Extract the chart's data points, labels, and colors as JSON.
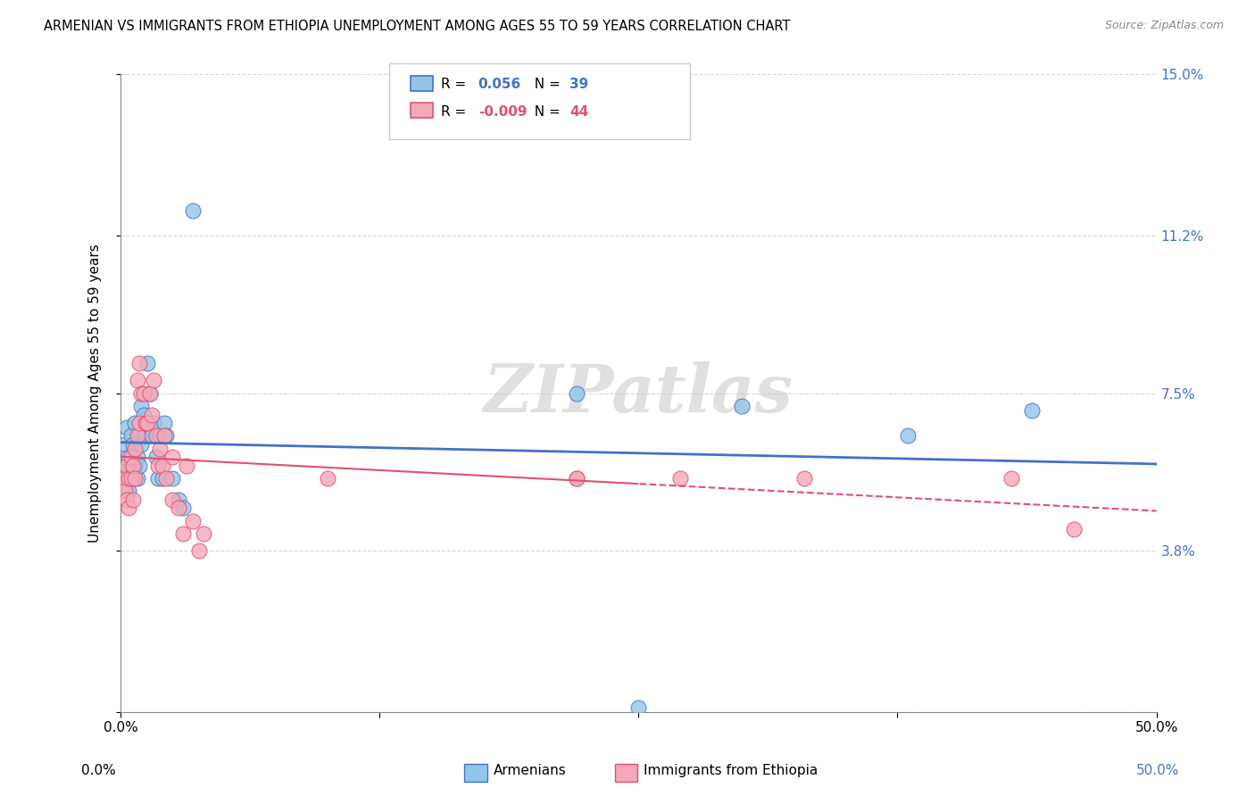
{
  "title": "ARMENIAN VS IMMIGRANTS FROM ETHIOPIA UNEMPLOYMENT AMONG AGES 55 TO 59 YEARS CORRELATION CHART",
  "source": "Source: ZipAtlas.com",
  "ylabel": "Unemployment Among Ages 55 to 59 years",
  "xlim": [
    0,
    0.5
  ],
  "ylim": [
    0,
    0.15
  ],
  "yticks": [
    0.0,
    0.038,
    0.075,
    0.112,
    0.15
  ],
  "ytick_labels": [
    "",
    "3.8%",
    "7.5%",
    "11.2%",
    "15.0%"
  ],
  "xticks": [
    0.0,
    0.125,
    0.25,
    0.375,
    0.5
  ],
  "xtick_labels": [
    "0.0%",
    "",
    "",
    "",
    "50.0%"
  ],
  "legend_label1": "Armenians",
  "legend_label2": "Immigrants from Ethiopia",
  "color_armenian": "#92C5E8",
  "color_ethiopia": "#F4A8B8",
  "color_line_armenian": "#4472C4",
  "color_line_ethiopia": "#E05070",
  "watermark": "ZIPatlas",
  "armenian_x": [
    0.002,
    0.003,
    0.003,
    0.004,
    0.004,
    0.005,
    0.005,
    0.006,
    0.006,
    0.007,
    0.007,
    0.008,
    0.008,
    0.009,
    0.009,
    0.01,
    0.01,
    0.011,
    0.012,
    0.012,
    0.013,
    0.014,
    0.015,
    0.016,
    0.017,
    0.018,
    0.019,
    0.02,
    0.021,
    0.022,
    0.025,
    0.028,
    0.03,
    0.035,
    0.22,
    0.3,
    0.38,
    0.44,
    0.25
  ],
  "armenian_y": [
    0.063,
    0.067,
    0.057,
    0.06,
    0.052,
    0.058,
    0.065,
    0.055,
    0.063,
    0.058,
    0.068,
    0.06,
    0.055,
    0.058,
    0.065,
    0.063,
    0.072,
    0.07,
    0.065,
    0.068,
    0.082,
    0.075,
    0.065,
    0.068,
    0.06,
    0.055,
    0.065,
    0.055,
    0.068,
    0.065,
    0.055,
    0.05,
    0.048,
    0.118,
    0.075,
    0.072,
    0.065,
    0.071,
    0.001
  ],
  "ethiopia_x": [
    0.002,
    0.002,
    0.003,
    0.003,
    0.004,
    0.004,
    0.005,
    0.005,
    0.006,
    0.006,
    0.007,
    0.007,
    0.008,
    0.008,
    0.009,
    0.009,
    0.01,
    0.011,
    0.012,
    0.013,
    0.014,
    0.015,
    0.016,
    0.017,
    0.018,
    0.019,
    0.02,
    0.021,
    0.022,
    0.025,
    0.025,
    0.028,
    0.03,
    0.032,
    0.035,
    0.038,
    0.04,
    0.1,
    0.22,
    0.27,
    0.33,
    0.43,
    0.46,
    0.22
  ],
  "ethiopia_y": [
    0.055,
    0.052,
    0.058,
    0.05,
    0.055,
    0.048,
    0.06,
    0.055,
    0.058,
    0.05,
    0.062,
    0.055,
    0.078,
    0.065,
    0.082,
    0.068,
    0.075,
    0.075,
    0.068,
    0.068,
    0.075,
    0.07,
    0.078,
    0.065,
    0.058,
    0.062,
    0.058,
    0.065,
    0.055,
    0.06,
    0.05,
    0.048,
    0.042,
    0.058,
    0.045,
    0.038,
    0.042,
    0.055,
    0.055,
    0.055,
    0.055,
    0.055,
    0.043,
    0.055
  ]
}
